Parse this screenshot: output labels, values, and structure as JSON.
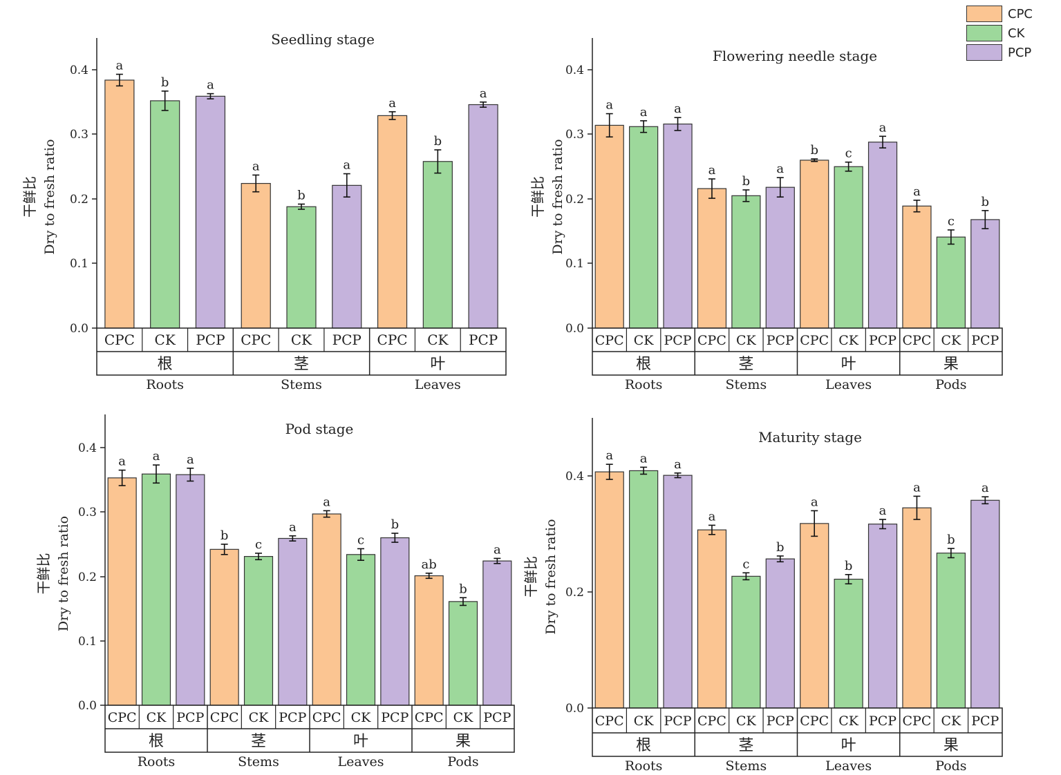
{
  "legend": [
    {
      "name": "CPC",
      "color": "#FBC592"
    },
    {
      "name": "CK",
      "color": "#9DD89B"
    },
    {
      "name": "PCP",
      "color": "#C5B3DC"
    }
  ],
  "y_axis": {
    "label_cn": "干鲜比",
    "label_en": "Dry to fresh ratio"
  },
  "treatments": [
    "CPC",
    "CK",
    "PCP"
  ],
  "chart_data": [
    {
      "type": "bar",
      "title": "Seedling stage",
      "ylim": [
        0,
        0.45
      ],
      "yticks": [
        "0.0",
        "0.1",
        "0.2",
        "0.3",
        "0.4"
      ],
      "groups": [
        {
          "cn": "根",
          "en": "Roots"
        },
        {
          "cn": "茎",
          "en": "Stems"
        },
        {
          "cn": "叶",
          "en": "Leaves"
        }
      ],
      "series": [
        {
          "name": "CPC",
          "values": [
            0.384,
            0.224,
            0.329
          ],
          "errors": [
            0.009,
            0.013,
            0.006
          ],
          "letters": [
            "a",
            "a",
            "a"
          ]
        },
        {
          "name": "CK",
          "values": [
            0.352,
            0.188,
            0.258
          ],
          "errors": [
            0.015,
            0.004,
            0.018
          ],
          "letters": [
            "b",
            "b",
            "b"
          ]
        },
        {
          "name": "PCP",
          "values": [
            0.359,
            0.221,
            0.346
          ],
          "errors": [
            0.004,
            0.018,
            0.004
          ],
          "letters": [
            "a",
            "a",
            "a"
          ]
        }
      ]
    },
    {
      "type": "bar",
      "title": "Flowering needle stage",
      "ylim": [
        0,
        0.45
      ],
      "yticks": [
        "0.0",
        "0.1",
        "0.2",
        "0.3",
        "0.4"
      ],
      "groups": [
        {
          "cn": "根",
          "en": "Roots"
        },
        {
          "cn": "茎",
          "en": "Stems"
        },
        {
          "cn": "叶",
          "en": "Leaves"
        },
        {
          "cn": "果",
          "en": "Pods"
        }
      ],
      "series": [
        {
          "name": "CPC",
          "values": [
            0.314,
            0.216,
            0.26,
            0.189
          ],
          "errors": [
            0.018,
            0.015,
            0.002,
            0.009
          ],
          "letters": [
            "a",
            "a",
            "b",
            "a"
          ]
        },
        {
          "name": "CK",
          "values": [
            0.312,
            0.205,
            0.25,
            0.141
          ],
          "errors": [
            0.009,
            0.009,
            0.007,
            0.011
          ],
          "letters": [
            "a",
            "b",
            "c",
            "c"
          ]
        },
        {
          "name": "PCP",
          "values": [
            0.316,
            0.218,
            0.288,
            0.168
          ],
          "errors": [
            0.01,
            0.015,
            0.009,
            0.014
          ],
          "letters": [
            "a",
            "a",
            "a",
            "b"
          ]
        }
      ]
    },
    {
      "type": "bar",
      "title": "Pod stage",
      "ylim": [
        0,
        0.45
      ],
      "yticks": [
        "0.0",
        "0.1",
        "0.2",
        "0.3",
        "0.4"
      ],
      "groups": [
        {
          "cn": "根",
          "en": "Roots"
        },
        {
          "cn": "茎",
          "en": "Stems"
        },
        {
          "cn": "叶",
          "en": "Leaves"
        },
        {
          "cn": "果",
          "en": "Pods"
        }
      ],
      "series": [
        {
          "name": "CPC",
          "values": [
            0.353,
            0.242,
            0.297,
            0.201
          ],
          "errors": [
            0.012,
            0.008,
            0.005,
            0.004
          ],
          "letters": [
            "a",
            "b",
            "a",
            "ab"
          ]
        },
        {
          "name": "CK",
          "values": [
            0.359,
            0.231,
            0.234,
            0.161
          ],
          "errors": [
            0.014,
            0.005,
            0.009,
            0.006
          ],
          "letters": [
            "a",
            "c",
            "c",
            "b"
          ]
        },
        {
          "name": "PCP",
          "values": [
            0.358,
            0.259,
            0.26,
            0.224
          ],
          "errors": [
            0.01,
            0.004,
            0.007,
            0.004
          ],
          "letters": [
            "a",
            "a",
            "b",
            "a"
          ]
        }
      ]
    },
    {
      "type": "bar",
      "title": "Maturity stage",
      "ylim": [
        0,
        0.5
      ],
      "yticks": [
        "0.0",
        "0.2",
        "0.4"
      ],
      "groups": [
        {
          "cn": "根",
          "en": "Roots"
        },
        {
          "cn": "茎",
          "en": "Stems"
        },
        {
          "cn": "叶",
          "en": "Leaves"
        },
        {
          "cn": "果",
          "en": "Pods"
        }
      ],
      "series": [
        {
          "name": "CPC",
          "values": [
            0.407,
            0.307,
            0.318,
            0.345
          ],
          "errors": [
            0.013,
            0.008,
            0.022,
            0.02
          ],
          "letters": [
            "a",
            "a",
            "a",
            "a"
          ]
        },
        {
          "name": "CK",
          "values": [
            0.409,
            0.227,
            0.222,
            0.267
          ],
          "errors": [
            0.006,
            0.006,
            0.008,
            0.008
          ],
          "letters": [
            "a",
            "c",
            "b",
            "b"
          ]
        },
        {
          "name": "PCP",
          "values": [
            0.401,
            0.257,
            0.317,
            0.358
          ],
          "errors": [
            0.004,
            0.005,
            0.008,
            0.006
          ],
          "letters": [
            "a",
            "b",
            "a",
            "a"
          ]
        }
      ]
    }
  ]
}
